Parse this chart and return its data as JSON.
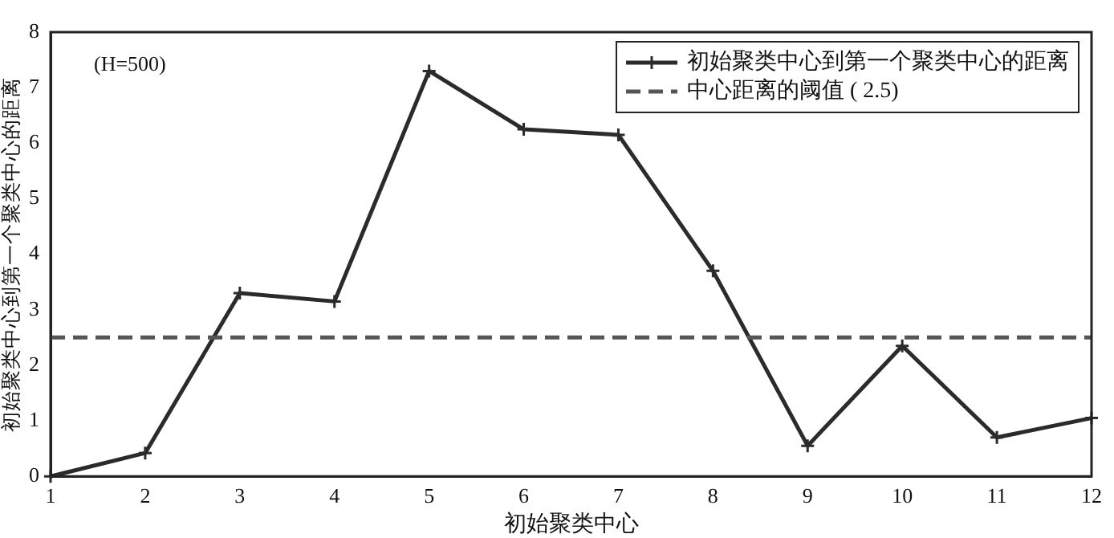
{
  "chart_data": {
    "type": "line",
    "xlabel": "初始聚类中心",
    "ylabel": "初始聚类中心到第一个聚类中心的距离",
    "x": [
      1,
      2,
      3,
      4,
      5,
      6,
      7,
      8,
      9,
      10,
      11,
      12
    ],
    "series": [
      {
        "name": "初始聚类中心到第一个聚类中心的距离",
        "color": "#2b2b2b",
        "values": [
          0,
          0.42,
          3.3,
          3.15,
          7.3,
          6.25,
          6.15,
          3.7,
          0.55,
          2.35,
          0.7,
          1.05
        ]
      }
    ],
    "ref_lines": [
      {
        "axis": "y",
        "value": 2.5,
        "label": "中心距离的阈值 ( 2.5)",
        "color": "#555555",
        "line_style": "dashed"
      }
    ],
    "annotations": [
      "(H=500)"
    ],
    "xlim": [
      1,
      12
    ],
    "xticks": [
      1,
      2,
      3,
      4,
      5,
      6,
      7,
      8,
      9,
      10,
      11,
      12
    ],
    "ylim": [
      0,
      8
    ],
    "yticks": [
      0,
      1,
      2,
      3,
      4,
      5,
      6,
      7,
      8
    ],
    "grid": false,
    "legend": "top right",
    "marker": "cross",
    "line_style": "solid"
  }
}
